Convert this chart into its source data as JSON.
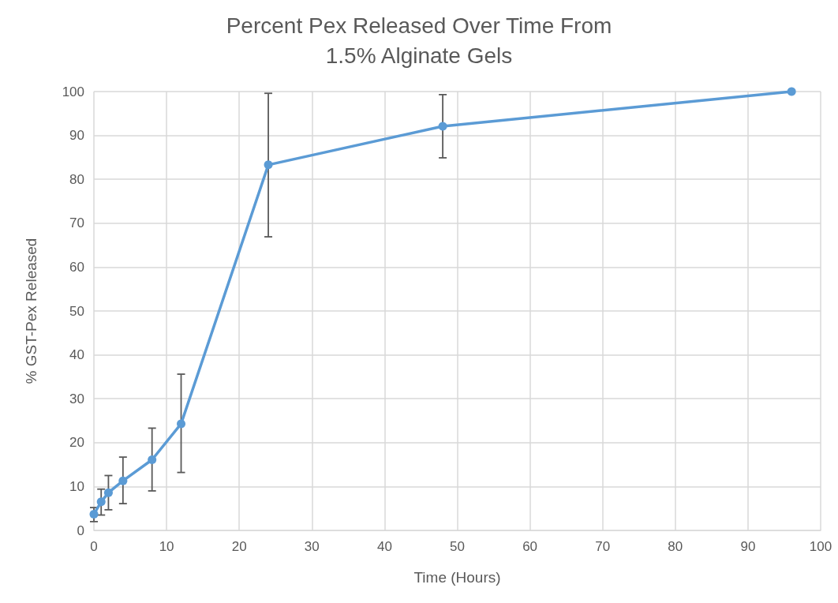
{
  "chart_data": {
    "type": "line",
    "title": "Percent Pex Released Over Time From\n1.5% Alginate Gels",
    "xlabel": "Time (Hours)",
    "ylabel": "% GST-Pex Released",
    "x": [
      0,
      1,
      2,
      4,
      8,
      12,
      24,
      48,
      96
    ],
    "series": [
      {
        "color": "#5b9bd5",
        "values": [
          3.7,
          6.5,
          8.6,
          11.3,
          16.1,
          24.3,
          83.3,
          92.1,
          100
        ],
        "errors": [
          [
            2.0,
            5.2
          ],
          [
            3.5,
            9.4
          ],
          [
            4.7,
            12.5
          ],
          [
            6.1,
            16.7
          ],
          [
            9.0,
            23.3
          ],
          [
            13.2,
            35.6
          ],
          [
            66.9,
            99.6
          ],
          [
            84.9,
            99.3
          ],
          null
        ]
      }
    ],
    "xlim": [
      0,
      100
    ],
    "xticks": [
      0,
      10,
      20,
      30,
      40,
      50,
      60,
      70,
      80,
      90,
      100
    ],
    "ylim": [
      0,
      100
    ],
    "yticks": [
      0,
      10,
      20,
      30,
      40,
      50,
      60,
      70,
      80,
      90,
      100
    ],
    "grid": true,
    "marker": "circle",
    "line_style": "solid"
  }
}
